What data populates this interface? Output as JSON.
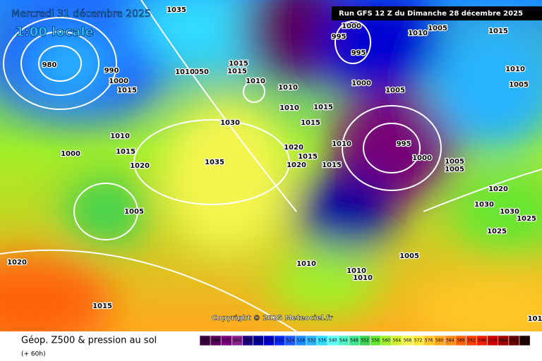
{
  "header": {
    "date": "Mercredi 31 décembre 2025",
    "time": "1:00 locale",
    "run": "Run GFS 12 Z du Dimanche 28 décembre 2025"
  },
  "copyright": "Copyright © 2025 Meteociel.fr",
  "footer": {
    "title": "Géop. Z500 & pression au sol",
    "lead": "(+ 60h)"
  },
  "legend": {
    "levels": [
      492,
      496,
      500,
      504,
      508,
      512,
      516,
      520,
      524,
      528,
      532,
      536,
      540,
      544,
      548,
      552,
      556,
      560,
      564,
      568,
      572,
      576,
      580,
      584,
      588,
      592,
      596,
      600,
      604,
      608,
      612
    ],
    "colors": [
      "#3a0040",
      "#5a005a",
      "#780078",
      "#8c1e8c",
      "#1e0082",
      "#0000a0",
      "#0000d2",
      "#0a28ff",
      "#1e5aff",
      "#1e8cff",
      "#28b4ff",
      "#32dcff",
      "#5affff",
      "#50f0c8",
      "#3ce68c",
      "#3cd250",
      "#64e632",
      "#a0f028",
      "#d2f032",
      "#f5f550",
      "#ffe63c",
      "#ffc828",
      "#ffaa1e",
      "#ff8c14",
      "#ff640a",
      "#ff3c00",
      "#f01e00",
      "#d20000",
      "#a00000",
      "#640000",
      "#1e0000"
    ]
  },
  "isobar_labels": [
    "1035",
    "1000",
    "995",
    "995",
    "1010",
    "1005",
    "1015",
    "1010",
    "1005",
    "1000",
    "1005",
    "1010",
    "1010",
    "1010",
    "1015",
    "1015",
    "1015",
    "1015",
    "1050",
    "1010",
    "1015",
    "1010",
    "1000",
    "1015",
    "1020",
    "1035",
    "1030",
    "1020",
    "1015",
    "1020",
    "1015",
    "1010",
    "995",
    "1000",
    "1005",
    "1005",
    "1020",
    "1030",
    "1030",
    "1025",
    "1025",
    "1005",
    "1020",
    "1015",
    "1010",
    "1010",
    "1010",
    "1005",
    "101",
    "980",
    "990",
    "1000"
  ]
}
